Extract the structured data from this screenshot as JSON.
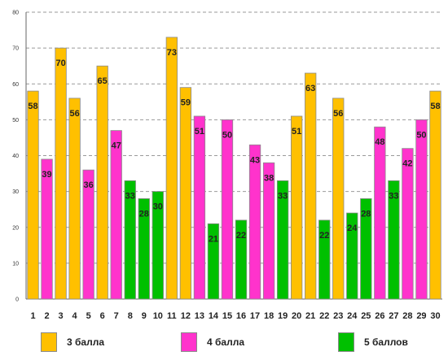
{
  "chart_data": {
    "type": "bar",
    "title": "",
    "xlabel": "",
    "ylabel": "",
    "ylim": [
      0,
      80
    ],
    "yticks": [
      0,
      10,
      20,
      30,
      40,
      50,
      60,
      70,
      80
    ],
    "grid": true,
    "legend_position": "bottom",
    "categories": [
      "1",
      "2",
      "3",
      "4",
      "5",
      "6",
      "7",
      "8",
      "9",
      "10",
      "11",
      "12",
      "13",
      "14",
      "15",
      "16",
      "17",
      "18",
      "19",
      "20",
      "21",
      "22",
      "23",
      "24",
      "25",
      "26",
      "27",
      "28",
      "29",
      "30"
    ],
    "values": [
      58,
      39,
      70,
      56,
      36,
      65,
      47,
      33,
      28,
      30,
      73,
      59,
      51,
      21,
      50,
      22,
      43,
      38,
      33,
      51,
      63,
      22,
      56,
      24,
      28,
      48,
      33,
      42,
      50,
      58
    ],
    "groups": [
      "3 балла",
      "4 балла",
      "3 балла",
      "3 балла",
      "4 балла",
      "3 балла",
      "4 балла",
      "5 баллов",
      "5 баллов",
      "5 баллов",
      "3 балла",
      "3 балла",
      "4 балла",
      "5 баллов",
      "4 балла",
      "5 баллов",
      "4 балла",
      "4 балла",
      "5 баллов",
      "3 балла",
      "3 балла",
      "5 баллов",
      "3 балла",
      "5 баллов",
      "5 баллов",
      "4 балла",
      "5 баллов",
      "4 балла",
      "4 балла",
      "3 балла"
    ],
    "series": [
      {
        "name": "3 балла",
        "color": "#FFC000"
      },
      {
        "name": "4 балла",
        "color": "#FF33CC"
      },
      {
        "name": "5 баллов",
        "color": "#00C000"
      }
    ]
  },
  "legend": {
    "items": [
      {
        "label": "3 балла",
        "color": "#FFC000"
      },
      {
        "label": "4 балла",
        "color": "#FF33CC"
      },
      {
        "label": "5 баллов",
        "color": "#00C000"
      }
    ]
  }
}
